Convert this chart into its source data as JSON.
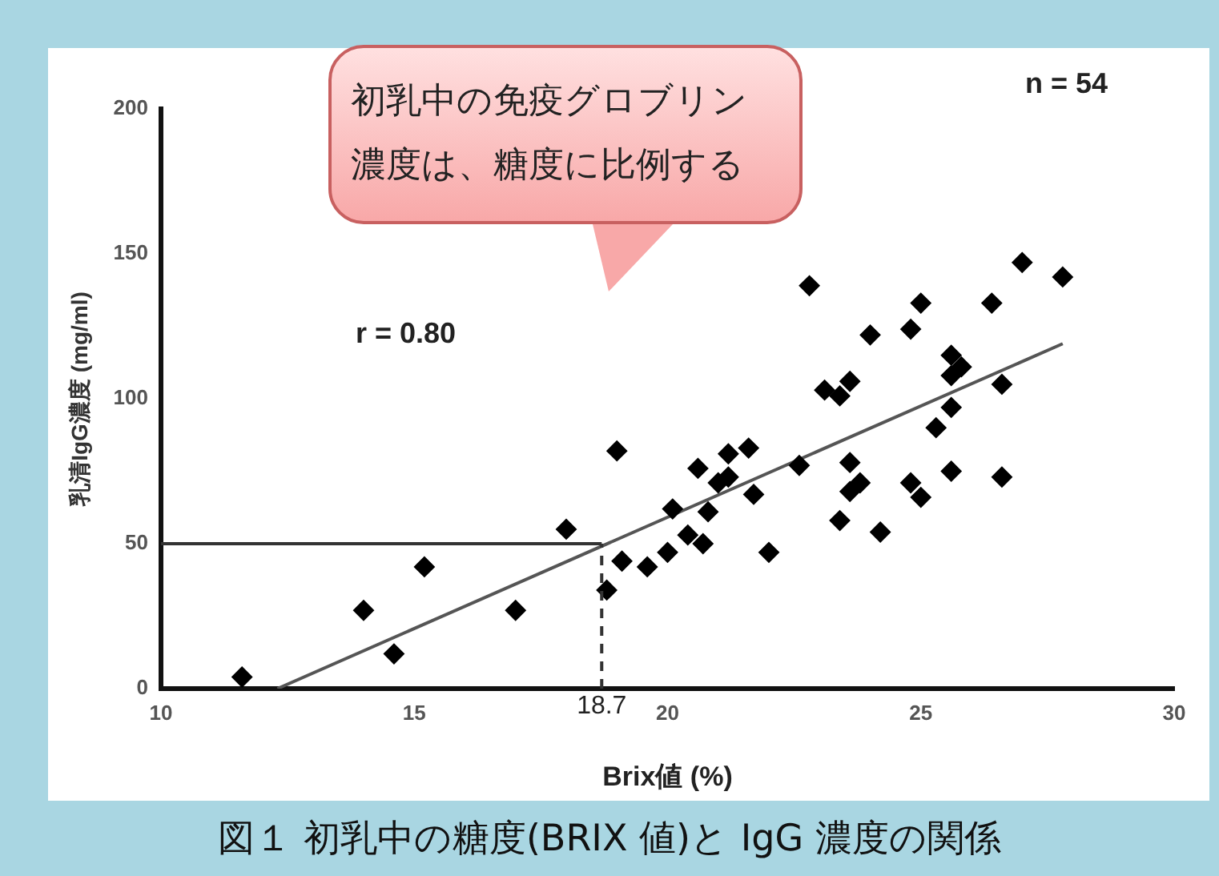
{
  "chart_data": {
    "type": "scatter",
    "title": "図１ 初乳中の糖度(BRIX 値)と IgG 濃度の関係",
    "xlabel": "Brix値 (%)",
    "ylabel": "乳清IgG濃度 (mg/ml)",
    "annotations": [
      "初乳中の免疫グロブリン濃度は、糖度に比例する",
      "n = 54",
      "r = 0.80"
    ],
    "xlim": [
      10,
      30
    ],
    "xticks": [
      10,
      15,
      20,
      25,
      30
    ],
    "ylim": [
      0,
      200
    ],
    "yticks": [
      0,
      50,
      100,
      150,
      200
    ],
    "grid": false,
    "legend": false,
    "ref_lines": [
      {
        "axis": "y",
        "value": 50,
        "color": "#333333",
        "line_style": "solid"
      },
      {
        "axis": "x",
        "value": 18.7,
        "label": "18.7",
        "color": "#333333",
        "line_style": "dashed"
      }
    ],
    "series": [
      {
        "color": "#000000",
        "marker": "diamond",
        "x": [
          11.6,
          14.0,
          14.6,
          15.2,
          17.0,
          18.0,
          18.8,
          19.0,
          22.8,
          27.0,
          27.8,
          25.0,
          26.4,
          24.0,
          24.8,
          25.6,
          25.8,
          25.6,
          26.6,
          23.1,
          23.4,
          23.6,
          25.6,
          25.3,
          20.6,
          21.2,
          21.6,
          21.2,
          22.6,
          23.6,
          23.8,
          23.6,
          21.7,
          24.8,
          25.0,
          25.6,
          26.6,
          23.4,
          24.2,
          22.0,
          20.1,
          20.8,
          20.4,
          20.7,
          20.0,
          19.6,
          19.1,
          21.0
        ],
        "values": [
          4,
          27,
          12,
          42,
          27,
          55,
          34,
          82,
          139,
          147,
          142,
          133,
          133,
          122,
          124,
          115,
          111,
          108,
          105,
          103,
          101,
          106,
          97,
          90,
          76,
          81,
          83,
          73,
          77,
          78,
          71,
          68,
          67,
          71,
          66,
          75,
          73,
          58,
          54,
          47,
          62,
          61,
          53,
          50,
          47,
          42,
          44,
          71
        ]
      },
      {
        "type": "line",
        "marker": "none",
        "color": "#555555",
        "x": [
          12.3,
          27.8
        ],
        "values": [
          0,
          119
        ]
      }
    ]
  }
}
